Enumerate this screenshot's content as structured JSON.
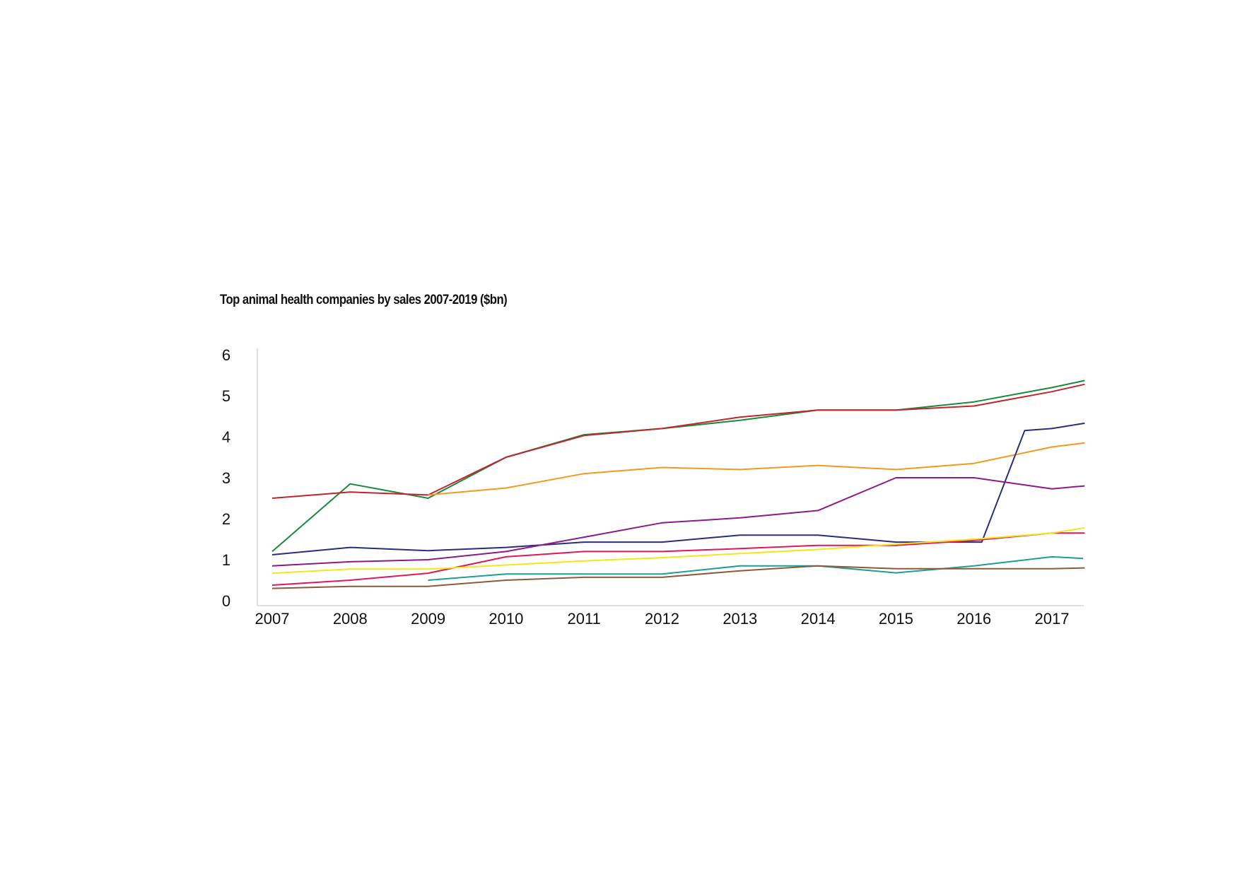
{
  "chart_data": {
    "type": "line",
    "title": "Top animal health companies by sales 2007-2019 ($bn)",
    "xlabel": "",
    "ylabel": "",
    "x_ticks": [
      "2007",
      "2008",
      "2009",
      "2010",
      "2011",
      "2012",
      "2013",
      "2014",
      "2015",
      "2016",
      "2017"
    ],
    "y_ticks": [
      "0",
      "1",
      "2",
      "3",
      "4",
      "5",
      "6"
    ],
    "ylim": [
      0,
      6
    ],
    "grid": false,
    "legend": "none",
    "series": [
      {
        "color": "#1a8a3a",
        "x": [
          2007,
          2008,
          2009,
          2010,
          2011,
          2012,
          2013,
          2014,
          2015,
          2016,
          2017,
          2017.42
        ],
        "values": [
          1.2,
          2.85,
          2.5,
          3.5,
          4.05,
          4.2,
          4.4,
          4.65,
          4.65,
          4.85,
          5.2,
          5.37
        ]
      },
      {
        "color": "#c0262d",
        "x": [
          2007,
          2008,
          2009,
          2010,
          2011,
          2012,
          2013,
          2014,
          2015,
          2016,
          2017,
          2017.42
        ],
        "values": [
          2.5,
          2.65,
          2.58,
          3.5,
          4.03,
          4.2,
          4.48,
          4.65,
          4.65,
          4.75,
          5.1,
          5.28
        ]
      },
      {
        "color": "#f39a1e",
        "x": [
          2009,
          2010,
          2011,
          2012,
          2013,
          2014,
          2015,
          2016,
          2017,
          2017.42
        ],
        "values": [
          2.58,
          2.75,
          3.1,
          3.25,
          3.2,
          3.3,
          3.2,
          3.35,
          3.75,
          3.85
        ]
      },
      {
        "color": "#2b2d7c",
        "x": [
          2007,
          2008,
          2009,
          2010,
          2011,
          2012,
          2013,
          2014,
          2015,
          2016,
          2016.1,
          2016.65,
          2017,
          2017.42
        ],
        "values": [
          1.12,
          1.3,
          1.22,
          1.3,
          1.43,
          1.43,
          1.6,
          1.6,
          1.43,
          1.43,
          1.43,
          4.15,
          4.2,
          4.33
        ]
      },
      {
        "color": "#8e1a8a",
        "x": [
          2007,
          2008,
          2009,
          2010,
          2011,
          2012,
          2013,
          2014,
          2015,
          2016,
          2017,
          2017.42
        ],
        "values": [
          0.85,
          0.95,
          1.0,
          1.2,
          1.55,
          1.9,
          2.02,
          2.2,
          3.0,
          3.0,
          2.73,
          2.8
        ]
      },
      {
        "color": "#e0185a",
        "x": [
          2007,
          2008,
          2009,
          2010,
          2011,
          2012,
          2013,
          2014,
          2015,
          2016,
          2017,
          2017.42
        ],
        "values": [
          0.38,
          0.5,
          0.67,
          1.07,
          1.2,
          1.2,
          1.27,
          1.35,
          1.35,
          1.47,
          1.65,
          1.65
        ]
      },
      {
        "color": "#f5e61b",
        "x": [
          2007,
          2008,
          2009,
          2010,
          2011,
          2012,
          2013,
          2014,
          2015,
          2016,
          2017,
          2017.42
        ],
        "values": [
          0.67,
          0.77,
          0.77,
          0.87,
          0.97,
          1.05,
          1.15,
          1.25,
          1.38,
          1.5,
          1.65,
          1.78
        ]
      },
      {
        "color": "#1f9e95",
        "x": [
          2009,
          2010,
          2011,
          2012,
          2013,
          2014,
          2015,
          2016,
          2017,
          2017.4
        ],
        "values": [
          0.5,
          0.65,
          0.65,
          0.65,
          0.85,
          0.85,
          0.68,
          0.85,
          1.07,
          1.03
        ]
      },
      {
        "color": "#8b5a3c",
        "x": [
          2007,
          2008,
          2009,
          2010,
          2011,
          2012,
          2013,
          2014,
          2015,
          2016,
          2017,
          2017.42
        ],
        "values": [
          0.3,
          0.35,
          0.35,
          0.5,
          0.57,
          0.57,
          0.73,
          0.85,
          0.78,
          0.78,
          0.78,
          0.8
        ]
      }
    ]
  }
}
